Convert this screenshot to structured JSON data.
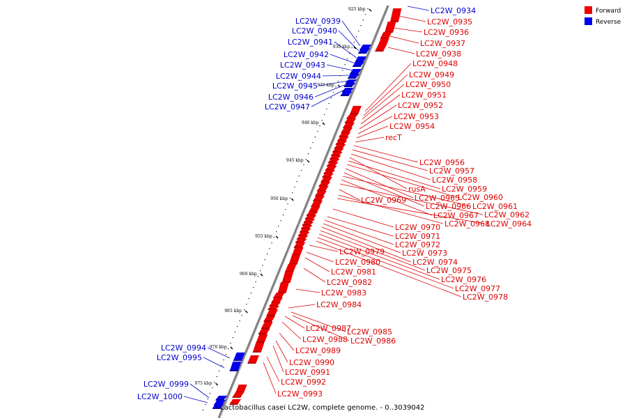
{
  "colors": {
    "forward": "#ee0000",
    "forward_dark": "#b00000",
    "reverse": "#0000ee",
    "reverse_dark": "#0000a0",
    "backbone": "#808080",
    "forward_label": "#dd0000",
    "reverse_label": "#0000cc"
  },
  "legend": {
    "forward_label": "Forward",
    "reverse_label": "Reverse"
  },
  "caption": "Lactobacillus casei LC2W, complete genome. - 0..3039042",
  "ticks": [
    "925 kbp",
    "930 kbp",
    "935 kbp",
    "940 kbp",
    "945 kbp",
    "950 kbp",
    "955 kbp",
    "960 kbp",
    "965 kbp",
    "970 kbp",
    "975 kbp"
  ],
  "reverse_labels": [
    "LC2W_0934",
    "LC2W_0939",
    "LC2W_0940",
    "LC2W_0941",
    "LC2W_0942",
    "LC2W_0943",
    "LC2W_0944",
    "LC2W_0945",
    "LC2W_0946",
    "LC2W_0947",
    "LC2W_0994",
    "LC2W_0995",
    "LC2W_0999",
    "LC2W_1000"
  ],
  "forward_labels": [
    "LC2W_0935",
    "LC2W_0936",
    "LC2W_0937",
    "LC2W_0938",
    "LC2W_0948",
    "LC2W_0949",
    "LC2W_0950",
    "LC2W_0951",
    "LC2W_0952",
    "LC2W_0953",
    "LC2W_0954",
    "recT",
    "LC2W_0956",
    "LC2W_0957",
    "LC2W_0958",
    "rusA",
    "LC2W_0959",
    "LC2W_0965",
    "LC2W_0960",
    "LC2W_0969",
    "LC2W_0966",
    "LC2W_0961",
    "LC2W_0967",
    "LC2W_0962",
    "LC2W_0968",
    "LC2W_0964",
    "LC2W_0970",
    "LC2W_0971",
    "LC2W_0972",
    "LC2W_0979",
    "LC2W_0973",
    "LC2W_0980",
    "LC2W_0974",
    "LC2W_0981",
    "LC2W_0975",
    "LC2W_0976",
    "LC2W_0982",
    "LC2W_0977",
    "LC2W_0983",
    "LC2W_0978",
    "LC2W_0984",
    "LC2W_0987",
    "LC2W_0985",
    "LC2W_0988",
    "LC2W_0986",
    "LC2W_0989",
    "LC2W_0990",
    "LC2W_0991",
    "LC2W_0992",
    "LC2W_0993"
  ]
}
